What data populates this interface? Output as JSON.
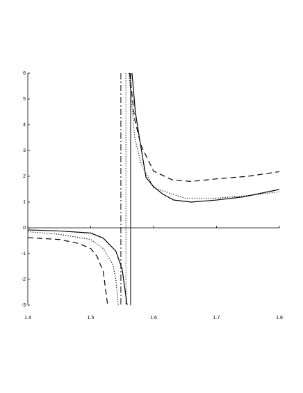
{
  "chart_data": {
    "type": "line",
    "xlim": [
      1.4,
      1.8
    ],
    "ylim": [
      -3,
      6
    ],
    "xticks": [
      1.4,
      1.5,
      1.6,
      1.7,
      1.8
    ],
    "yticks": [
      -3,
      -2,
      -1,
      0,
      1,
      2,
      3,
      4,
      5,
      6
    ],
    "series": [
      {
        "color": "#000000",
        "dash": "solid",
        "x": [
          1.4,
          1.45,
          1.5,
          1.52,
          1.54,
          1.55,
          1.558,
          1.56,
          1.5657,
          1.571,
          1.578,
          1.588,
          1.6,
          1.615,
          1.632,
          1.66,
          1.7,
          1.742,
          1.8
        ],
        "values": [
          -0.08,
          -0.12,
          -0.2,
          -0.4,
          -0.9,
          -1.6,
          -3,
          null,
          6,
          4.5,
          3.4,
          1.95,
          1.6,
          1.3,
          1.08,
          1.0,
          1.08,
          1.2,
          1.49
        ]
      },
      {
        "color": "#000000",
        "dash": "dot",
        "x": [
          1.4,
          1.45,
          1.5,
          1.52,
          1.535,
          1.54,
          1.544,
          1.55,
          1.561,
          1.57,
          1.58,
          1.6,
          1.65,
          1.7,
          1.75,
          1.8
        ],
        "values": [
          -0.15,
          -0.25,
          -0.45,
          -0.8,
          -1.4,
          -2.0,
          -3,
          null,
          6,
          3.5,
          2.5,
          1.55,
          1.15,
          1.15,
          1.25,
          1.4
        ]
      },
      {
        "color": "#000000",
        "dash": "dash",
        "x": [
          1.4,
          1.45,
          1.48,
          1.5,
          1.51,
          1.52,
          1.527,
          1.54,
          1.562,
          1.57,
          1.58,
          1.6,
          1.63,
          1.66,
          1.7,
          1.75,
          1.8
        ],
        "values": [
          -0.38,
          -0.45,
          -0.6,
          -0.8,
          -1.1,
          -1.7,
          -3,
          null,
          6,
          4.2,
          3.2,
          2.2,
          1.86,
          1.8,
          1.9,
          2.0,
          2.18
        ]
      }
    ],
    "vlines": [
      {
        "x": 1.548,
        "dash": "dashdot"
      },
      {
        "x": 1.556,
        "dash": "dot"
      },
      {
        "x": 1.5635,
        "dash": "solid"
      }
    ]
  }
}
